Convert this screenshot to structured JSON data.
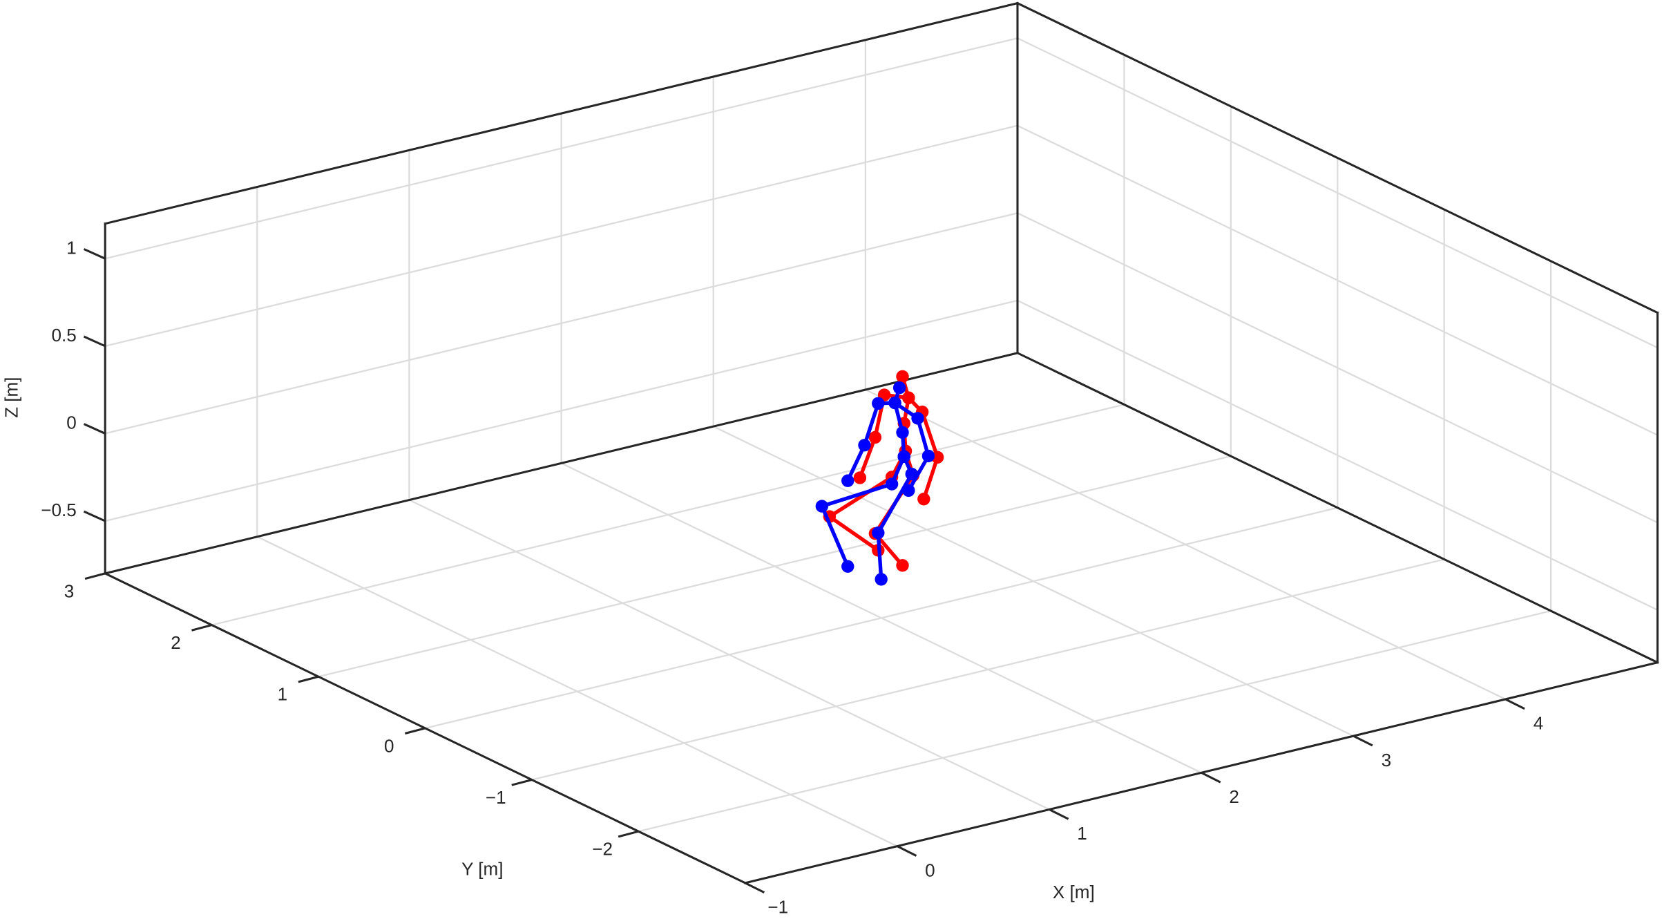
{
  "chart_data": {
    "type": "line3d",
    "xlabel": "X [m]",
    "ylabel": "Y [m]",
    "zlabel": "Z [m]",
    "xlim": [
      -1,
      5
    ],
    "ylim": [
      -3,
      3
    ],
    "zlim": [
      -0.8,
      1.2
    ],
    "xticks": [
      {
        "value": -1,
        "label": "−1"
      },
      0,
      1,
      2,
      3,
      4
    ],
    "yticks": [
      {
        "value": -2,
        "label": "−2"
      },
      {
        "value": -1,
        "label": "−1"
      },
      0,
      1,
      2,
      3
    ],
    "zticks": [
      {
        "value": -0.5,
        "label": "−0.5"
      },
      0,
      0.5,
      1
    ],
    "grid": true,
    "series": [
      {
        "color": "#ff0000",
        "x": [
          2.49,
          2.53,
          2.5,
          2.51,
          null,
          2.53,
          2.37,
          2.31,
          2.21,
          null,
          2.53,
          2.62,
          2.72,
          2.63,
          null,
          2.51,
          2.42,
          2.01,
          2.33,
          null,
          2.51,
          2.56,
          2.31,
          2.49
        ],
        "y": [
          0.5,
          0.5,
          0.5,
          0.5,
          null,
          0.5,
          0.5,
          0.5,
          0.5,
          null,
          0.5,
          0.5,
          0.5,
          0.5,
          null,
          0.5,
          0.5,
          0.5,
          0.5,
          null,
          0.5,
          0.5,
          0.5,
          0.5
        ],
        "z": [
          0.33,
          0.2,
          0.06,
          -0.1,
          null,
          0.2,
          0.25,
          0.02,
          -0.19,
          null,
          0.2,
          0.1,
          -0.18,
          -0.4,
          null,
          -0.1,
          -0.23,
          -0.37,
          -0.63,
          null,
          -0.1,
          -0.25,
          -0.53,
          -0.75
        ]
      },
      {
        "color": "#0000ff",
        "x": [
          2.47,
          2.44,
          2.49,
          2.5,
          null,
          2.44,
          2.33,
          2.24,
          2.13,
          null,
          2.44,
          2.59,
          2.66,
          2.53,
          null,
          2.5,
          2.42,
          1.96,
          2.13,
          null,
          2.5,
          2.55,
          2.33,
          2.35
        ],
        "y": [
          0.5,
          0.5,
          0.5,
          0.5,
          null,
          0.5,
          0.5,
          0.5,
          0.5,
          null,
          0.5,
          0.5,
          0.5,
          0.5,
          null,
          0.5,
          0.5,
          0.5,
          0.5,
          null,
          0.5,
          0.5,
          0.5,
          0.5
        ],
        "z": [
          0.27,
          0.19,
          0.01,
          -0.13,
          null,
          0.19,
          0.21,
          -0.01,
          -0.19,
          null,
          0.19,
          0.07,
          -0.16,
          -0.33,
          null,
          -0.13,
          -0.27,
          -0.3,
          -0.68,
          null,
          -0.13,
          -0.24,
          -0.53,
          -0.8
        ]
      }
    ]
  }
}
